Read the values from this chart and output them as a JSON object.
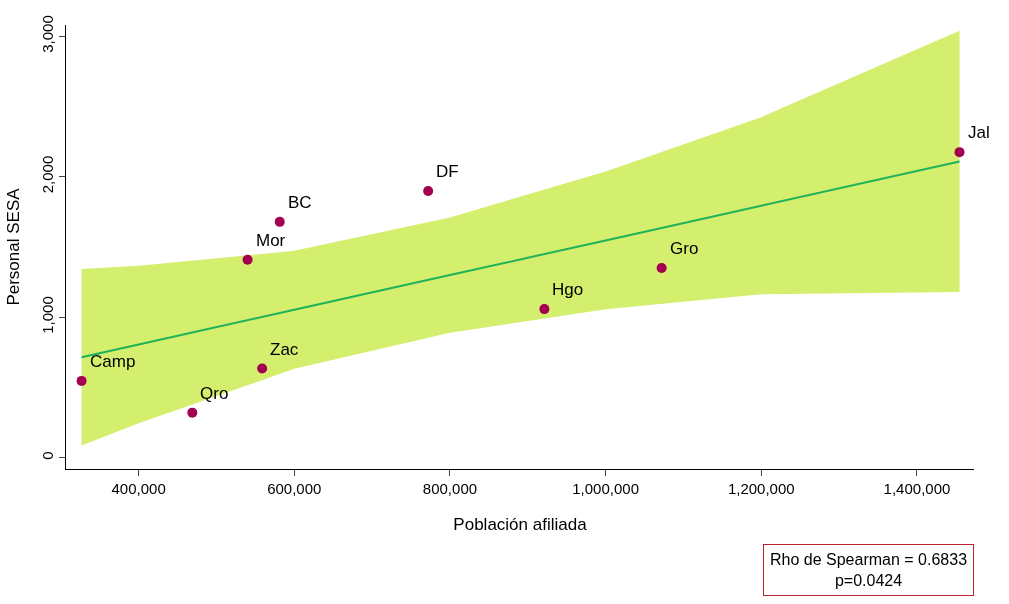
{
  "chart_data": {
    "type": "scatter",
    "xlabel": "Población afiliada",
    "ylabel": "Personal SESA",
    "xlim": [
      306700,
      1473300
    ],
    "ylim": [
      -80,
      3080
    ],
    "xticks": [
      {
        "value": 400000,
        "label": "400,000"
      },
      {
        "value": 600000,
        "label": "600,000"
      },
      {
        "value": 800000,
        "label": "800,000"
      },
      {
        "value": 1000000,
        "label": "1,000,000"
      },
      {
        "value": 1200000,
        "label": "1,200,000"
      },
      {
        "value": 1400000,
        "label": "1,400,000"
      }
    ],
    "yticks": [
      0,
      {
        "value": 1000,
        "label": "1,000"
      },
      {
        "value": 2000,
        "label": "2,000"
      },
      {
        "value": 3000,
        "label": "3,000"
      }
    ],
    "series": [
      {
        "type": "line",
        "marker": "none",
        "color": "#1fb25a",
        "x": [
          326700,
          400000,
          600000,
          800000,
          1000000,
          1200000,
          1454700
        ],
        "values": [
          715,
          806,
          1053,
          1300,
          1547,
          1794,
          2109
        ],
        "lower": [
          87,
          246,
          633,
          890,
          1057,
          1164,
          1179
        ],
        "upper": [
          1343,
          1366,
          1473,
          1710,
          2037,
          2424,
          3039
        ]
      },
      {
        "marker": "circle",
        "color": "#a3004f",
        "x": [
          326700,
          469000,
          558700,
          540000,
          581300,
          772000,
          921300,
          1072000,
          1454700
        ],
        "values": [
          547,
          321,
          635,
          1409,
          1679,
          1898,
          1058,
          1350,
          2175
        ]
      }
    ],
    "annotations": [
      {
        "text": "Camp",
        "x": 326700,
        "y": 547
      },
      {
        "text": "Qro",
        "x": 469000,
        "y": 321
      },
      {
        "text": "Zac",
        "x": 558700,
        "y": 635
      },
      {
        "text": "Mor",
        "x": 540000,
        "y": 1409
      },
      {
        "text": "BC",
        "x": 581300,
        "y": 1679
      },
      {
        "text": "DF",
        "x": 772000,
        "y": 1898
      },
      {
        "text": "Hgo",
        "x": 921300,
        "y": 1058
      },
      {
        "text": "Gro",
        "x": 1072000,
        "y": 1350
      },
      {
        "text": "Jal",
        "x": 1454700,
        "y": 2175
      },
      "Rho de Spearman = 0.6833\np=0.0424"
    ]
  }
}
